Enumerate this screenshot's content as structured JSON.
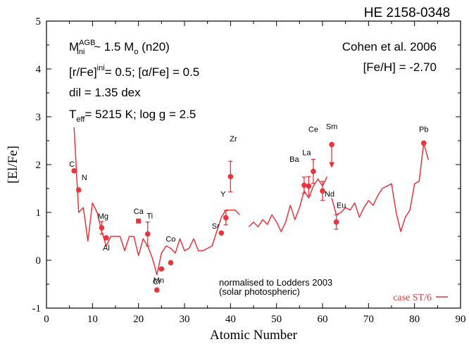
{
  "chart_data": {
    "type": "line",
    "title": "HE 2158-0348",
    "xlabel": "Atomic Number",
    "ylabel": "[El/Fe]",
    "xlim": [
      0,
      90
    ],
    "ylim": [
      -1,
      5
    ],
    "x_ticks": [
      0,
      10,
      20,
      30,
      40,
      50,
      60,
      70,
      80,
      90
    ],
    "y_ticks": [
      -1,
      0,
      1,
      2,
      3,
      4,
      5
    ],
    "grid": false,
    "colors": {
      "axes": "#000000",
      "data": "#e8343a"
    },
    "text_block_left": {
      "line1_main": "M",
      "line1_sup": "AGB",
      "line1_sub": "ini",
      "line1_rest_a": " ~ 1.5 M",
      "line1_sub2": "o",
      "line1_rest_b": "  (n20)",
      "line2_a": "[r/Fe]",
      "line2_sup": "ini",
      "line2_b": "= 0.5;  [",
      "line2_alpha": "α",
      "line2_c": "/Fe] = 0.5",
      "line3": "dil = 1.35 dex",
      "line4_a": "T",
      "line4_sub": "eff",
      "line4_b": "= 5215 K; log g = 2.5"
    },
    "text_block_right": {
      "line1": "Cohen et al. 2006",
      "line2": "[Fe/H] = -2.70"
    },
    "normalisation_note": {
      "line1": "normalised to Lodders 2003",
      "line2": "(solar photospheric)"
    },
    "legend": {
      "label": "case ST/6",
      "position": "bottom-right"
    },
    "model_segments": [
      {
        "x": [
          6,
          7,
          8,
          9,
          10,
          11,
          12,
          13,
          14,
          15,
          16,
          17,
          18,
          19,
          20,
          21,
          22,
          23,
          24,
          25,
          26,
          27,
          28,
          29,
          30,
          31,
          32,
          33,
          34,
          35,
          36,
          37,
          38,
          39,
          40,
          41,
          42
        ],
        "y": [
          2.78,
          1.0,
          1.1,
          0.4,
          1.2,
          1.0,
          0.6,
          0.3,
          0.5,
          0.5,
          0.5,
          0.2,
          0.5,
          0.5,
          0.1,
          0.45,
          0.3,
          0.05,
          -0.3,
          0.15,
          0.3,
          0.25,
          0.15,
          0.45,
          0.2,
          0.25,
          0.45,
          0.2,
          0.2,
          0.25,
          0.3,
          0.6,
          0.9,
          1.05,
          1.05,
          1.05,
          0.95
        ]
      },
      {
        "x": [
          44,
          45,
          46,
          47,
          48,
          49,
          50,
          51,
          52,
          53,
          54,
          55,
          56,
          57,
          58,
          59,
          60,
          61
        ],
        "y": [
          0.7,
          0.8,
          0.7,
          0.85,
          0.75,
          0.95,
          0.8,
          0.6,
          0.8,
          1.15,
          0.85,
          1.1,
          1.45,
          1.3,
          1.55,
          1.7,
          1.55,
          1.75
        ]
      },
      {
        "x": [
          62,
          63,
          64,
          65,
          66,
          67,
          68,
          69,
          70,
          71,
          72,
          73,
          74,
          75,
          76,
          77,
          78,
          79,
          80,
          81,
          82,
          83
        ],
        "y": [
          1.3,
          0.95,
          1.0,
          1.1,
          1.05,
          1.2,
          0.9,
          1.1,
          1.25,
          1.15,
          1.35,
          1.5,
          1.55,
          1.6,
          1.0,
          0.6,
          0.9,
          1.05,
          1.6,
          1.65,
          2.45,
          2.1
        ]
      }
    ],
    "observed_points": [
      {
        "element": "C",
        "x": 6,
        "y": 1.87
      },
      {
        "element": "N",
        "x": 7,
        "y": 1.47
      },
      {
        "element": "Mg",
        "x": 12,
        "y": 0.68,
        "err": 0.13
      },
      {
        "element": "Al",
        "x": 13,
        "y": 0.47
      },
      {
        "element": "Ca",
        "x": 20,
        "y": 0.82,
        "marker": "square"
      },
      {
        "element": "Ti",
        "x": 22,
        "y": 0.55,
        "err": 0.25
      },
      {
        "element": "Cr",
        "x": 24,
        "y": -0.62
      },
      {
        "element": "Mn",
        "x": 25,
        "y": -0.18
      },
      {
        "element": "Co",
        "x": 27,
        "y": -0.05
      },
      {
        "element": "Sr",
        "x": 38,
        "y": 0.57
      },
      {
        "element": "Y",
        "x": 39,
        "y": 0.89,
        "err": 0.15
      },
      {
        "element": "Zr",
        "x": 40,
        "y": 1.75,
        "err": 0.32
      },
      {
        "element": "Ba",
        "x": 56,
        "y": 1.57,
        "err": 0.17
      },
      {
        "element": "La",
        "x": 57,
        "y": 1.55,
        "err": 0.2
      },
      {
        "element": "Ce",
        "x": 58,
        "y": 1.86,
        "err": 0.25
      },
      {
        "element": "Nd",
        "x": 60,
        "y": 1.45,
        "err": 0.2
      },
      {
        "element": "Sm",
        "x": 62,
        "y": 2.42,
        "upper_limit": true
      },
      {
        "element": "Eu",
        "x": 63,
        "y": 0.8,
        "err": 0.15
      },
      {
        "element": "Pb",
        "x": 82,
        "y": 2.45
      }
    ]
  }
}
